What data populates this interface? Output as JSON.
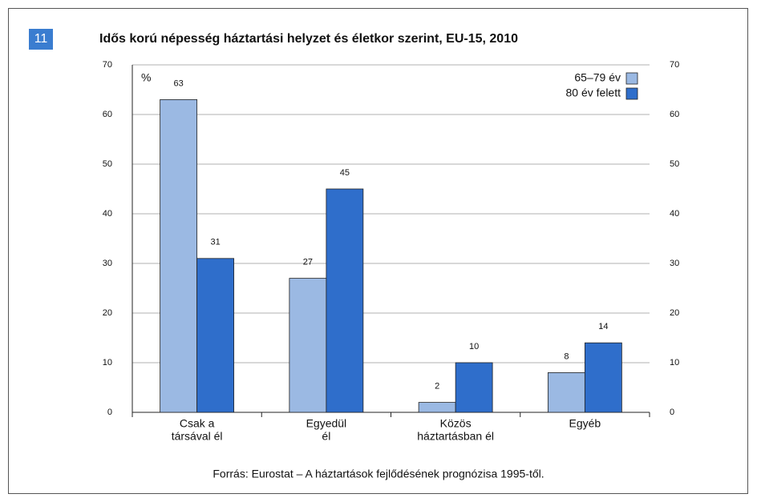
{
  "figure_number": "11",
  "chart_data": {
    "type": "bar",
    "title": "Idős korú népesség háztartási helyzet és életkor szerint, EU-15, 2010",
    "y_unit": "%",
    "categories": [
      [
        "Csak a",
        "társával él"
      ],
      [
        "Egyedül",
        "él"
      ],
      [
        "Közös",
        "háztartásban él"
      ],
      [
        "Egyéb"
      ]
    ],
    "series": [
      {
        "name": "65–79 év",
        "color": "#9bb9e3",
        "values": [
          63,
          27,
          2,
          8
        ]
      },
      {
        "name": "80 év felett",
        "color": "#2f6ecb",
        "values": [
          31,
          45,
          10,
          14
        ]
      }
    ],
    "ylim": [
      0,
      70
    ],
    "yticks": [
      0,
      10,
      20,
      30,
      40,
      50,
      60,
      70
    ],
    "y2lim": [
      0,
      70
    ],
    "y2ticks": [
      0,
      10,
      20,
      30,
      40,
      50,
      60,
      70
    ],
    "grid": true,
    "legend": "top-right",
    "source": "Forrás: Eurostat – A háztartások fejlődésének prognózisa 1995-től."
  }
}
